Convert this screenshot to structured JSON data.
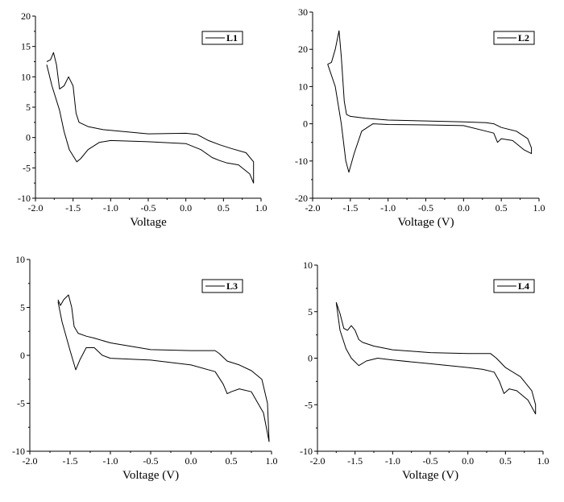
{
  "chart_data": [
    {
      "type": "line",
      "xlabel": "Voltage",
      "ylabel": "",
      "xlim": [
        -2.0,
        1.0
      ],
      "ylim": [
        -10,
        20
      ],
      "xticks": [
        "-2.0",
        "-1.5",
        "-1.0",
        "-0.5",
        "0.0",
        "0.5",
        "1.0"
      ],
      "yticks": [
        "-10",
        "-5",
        "0",
        "5",
        "10",
        "15",
        "20"
      ],
      "grid": false,
      "legend_position": "top-right",
      "series": [
        {
          "name": "L1",
          "color": "#000000",
          "x": [
            -1.85,
            -1.8,
            -1.76,
            -1.72,
            -1.68,
            -1.62,
            -1.56,
            -1.5,
            -1.46,
            -1.42,
            -1.3,
            -1.1,
            -0.5,
            0.0,
            0.15,
            0.3,
            0.45,
            0.6,
            0.8,
            0.9,
            0.9,
            0.85,
            0.7,
            0.55,
            0.45,
            0.35,
            0.2,
            0.0,
            -0.5,
            -1.0,
            -1.15,
            -1.3,
            -1.4,
            -1.45,
            -1.55,
            -1.62,
            -1.68,
            -1.78,
            -1.85
          ],
          "y": [
            12.5,
            12.8,
            14.0,
            12.0,
            8.0,
            8.5,
            10.0,
            8.5,
            4.0,
            2.5,
            1.8,
            1.3,
            0.6,
            0.7,
            0.5,
            -0.5,
            -1.2,
            -1.8,
            -2.5,
            -4.0,
            -7.5,
            -6.0,
            -4.5,
            -4.2,
            -3.8,
            -3.3,
            -2.0,
            -1.0,
            -0.7,
            -0.5,
            -0.8,
            -2.0,
            -3.5,
            -4.0,
            -2.0,
            1.0,
            4.5,
            8.5,
            12.0
          ]
        }
      ]
    },
    {
      "type": "line",
      "xlabel": "Voltage (V)",
      "ylabel": "",
      "xlim": [
        -2.0,
        1.0
      ],
      "ylim": [
        -20,
        30
      ],
      "xticks": [
        "-2.0",
        "-1.5",
        "-1.0",
        "-0.5",
        "0.0",
        "0.5",
        "1.0"
      ],
      "yticks": [
        "-20",
        "-10",
        "0",
        "10",
        "20",
        "30"
      ],
      "grid": false,
      "legend_position": "top-right",
      "series": [
        {
          "name": "L2",
          "color": "#000000",
          "x": [
            -1.8,
            -1.75,
            -1.7,
            -1.65,
            -1.62,
            -1.58,
            -1.55,
            -1.5,
            -1.3,
            -1.0,
            0.0,
            0.3,
            0.4,
            0.5,
            0.7,
            0.85,
            0.9,
            0.9,
            0.8,
            0.65,
            0.5,
            0.45,
            0.4,
            0.3,
            0.0,
            -0.5,
            -1.0,
            -1.2,
            -1.35,
            -1.45,
            -1.52,
            -1.56,
            -1.62,
            -1.7,
            -1.8
          ],
          "y": [
            16.0,
            16.5,
            20.0,
            25.0,
            18.0,
            6.0,
            2.5,
            2.0,
            1.5,
            1.0,
            0.5,
            0.3,
            0.0,
            -1.0,
            -2.0,
            -4.0,
            -6.5,
            -8.0,
            -7.0,
            -4.5,
            -4.0,
            -5.0,
            -2.5,
            -2.0,
            -0.5,
            -0.3,
            -0.2,
            0.0,
            -2.0,
            -8.0,
            -13.0,
            -10.0,
            0.0,
            10.0,
            16.0
          ]
        }
      ]
    },
    {
      "type": "line",
      "xlabel": "Voltage (V)",
      "ylabel": "",
      "xlim": [
        -2.0,
        1.0
      ],
      "ylim": [
        -10,
        10
      ],
      "xticks": [
        "-2.0",
        "-1.5",
        "-1.0",
        "-0.5",
        "0.0",
        "0.5",
        "1.0"
      ],
      "yticks": [
        "-10",
        "-5",
        "0",
        "5",
        "10"
      ],
      "grid": false,
      "legend_position": "top-right",
      "series": [
        {
          "name": "L3",
          "color": "#000000",
          "x": [
            -1.65,
            -1.62,
            -1.58,
            -1.52,
            -1.48,
            -1.45,
            -1.4,
            -1.3,
            -1.2,
            -1.0,
            -0.5,
            0.0,
            0.3,
            0.35,
            0.45,
            0.6,
            0.75,
            0.88,
            0.95,
            0.97,
            0.9,
            0.75,
            0.6,
            0.5,
            0.45,
            0.4,
            0.3,
            0.0,
            -0.5,
            -1.0,
            -1.1,
            -1.2,
            -1.3,
            -1.38,
            -1.43,
            -1.5,
            -1.6,
            -1.65
          ],
          "y": [
            5.8,
            5.2,
            5.8,
            6.3,
            5.0,
            3.0,
            2.3,
            2.0,
            1.8,
            1.3,
            0.6,
            0.5,
            0.5,
            0.2,
            -0.6,
            -1.0,
            -1.6,
            -2.5,
            -5.0,
            -9.0,
            -6.0,
            -3.8,
            -3.5,
            -3.8,
            -4.0,
            -3.0,
            -1.7,
            -1.0,
            -0.5,
            -0.3,
            0.0,
            0.8,
            0.8,
            -0.5,
            -1.5,
            0.5,
            3.5,
            5.6
          ]
        }
      ]
    },
    {
      "type": "line",
      "xlabel": "Voltage (V)",
      "ylabel": "",
      "xlim": [
        -2.0,
        1.0
      ],
      "ylim": [
        -10,
        10
      ],
      "xticks": [
        "-2.0",
        "-1.5",
        "-1.0",
        "-0.5",
        "0.0",
        "0.5",
        "1.0"
      ],
      "yticks": [
        "-10",
        "-5",
        "0",
        "5",
        "10"
      ],
      "grid": false,
      "legend_position": "top-right",
      "series": [
        {
          "name": "L4",
          "color": "#000000",
          "x": [
            -1.75,
            -1.7,
            -1.65,
            -1.6,
            -1.55,
            -1.5,
            -1.45,
            -1.4,
            -1.25,
            -1.0,
            -0.5,
            0.0,
            0.3,
            0.38,
            0.5,
            0.7,
            0.85,
            0.9,
            0.9,
            0.8,
            0.65,
            0.55,
            0.48,
            0.42,
            0.35,
            0.2,
            0.0,
            -0.5,
            -1.0,
            -1.2,
            -1.35,
            -1.45,
            -1.55,
            -1.62,
            -1.7,
            -1.75
          ],
          "y": [
            6.0,
            4.8,
            3.2,
            3.0,
            3.5,
            3.0,
            2.0,
            1.7,
            1.3,
            0.9,
            0.6,
            0.5,
            0.5,
            0.0,
            -1.0,
            -2.0,
            -3.5,
            -5.0,
            -6.0,
            -4.5,
            -3.5,
            -3.3,
            -3.8,
            -2.5,
            -1.5,
            -1.2,
            -1.0,
            -0.6,
            -0.2,
            0.0,
            -0.3,
            -0.8,
            0.0,
            1.0,
            3.0,
            6.0
          ]
        }
      ]
    }
  ]
}
